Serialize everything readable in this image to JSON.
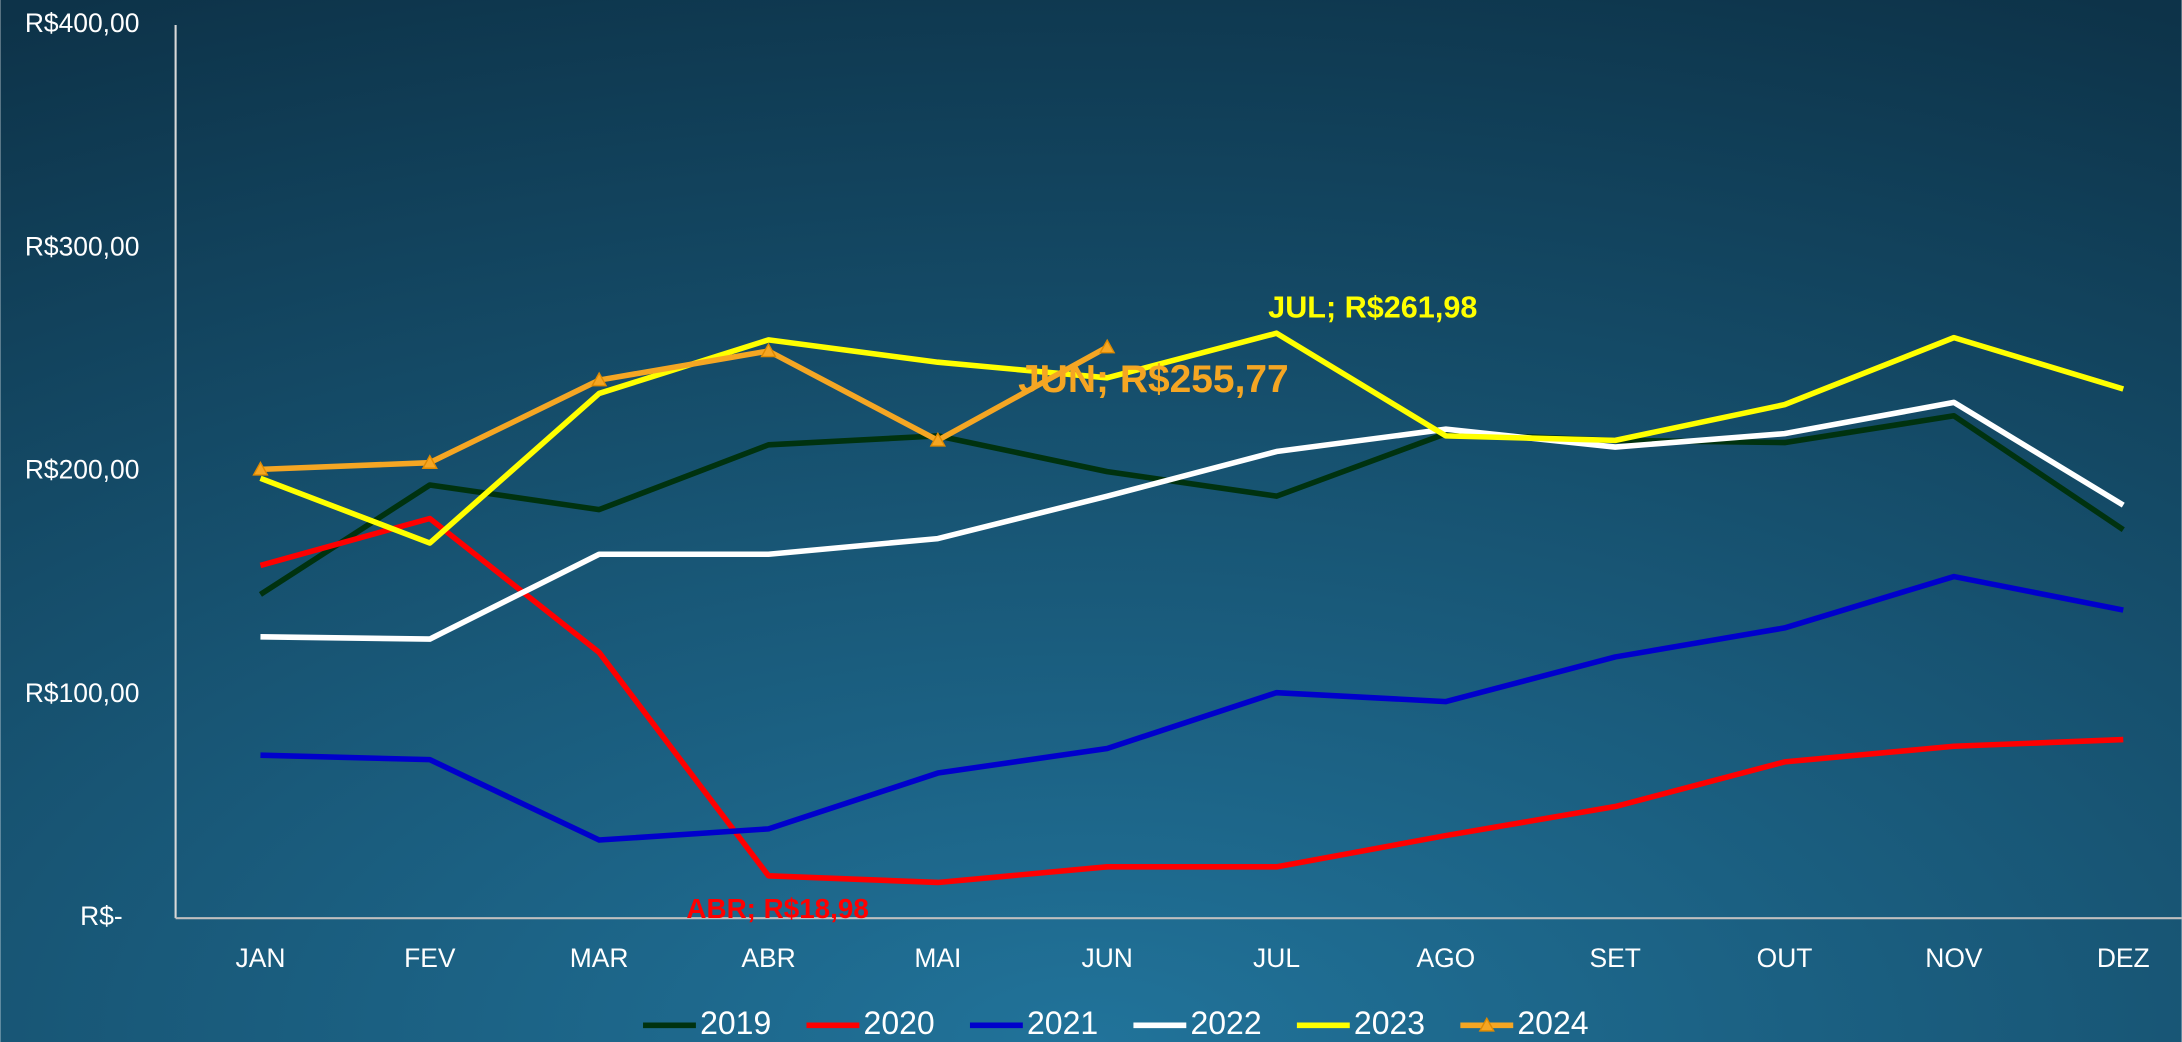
{
  "chart_data": {
    "type": "line",
    "categories": [
      "JAN",
      "FEV",
      "MAR",
      "ABR",
      "MAI",
      "JUN",
      "JUL",
      "AGO",
      "SET",
      "OUT",
      "NOV",
      "DEZ"
    ],
    "ylim": [
      0,
      400
    ],
    "yticks": [
      {
        "value": 0,
        "label": "R$-"
      },
      {
        "value": 100,
        "label": "R$100,00"
      },
      {
        "value": 200,
        "label": "R$200,00"
      },
      {
        "value": 300,
        "label": "R$300,00"
      },
      {
        "value": 400,
        "label": "R$400,00"
      }
    ],
    "grid": false,
    "legend": "bottom",
    "series": [
      {
        "name": "2019",
        "color": "#00320f",
        "values": [
          145,
          194,
          183,
          212,
          216,
          200,
          189,
          217,
          214,
          213,
          225,
          174
        ]
      },
      {
        "name": "2020",
        "color": "#ff0000",
        "values": [
          158,
          179,
          119,
          18.98,
          16,
          23,
          23,
          37,
          50,
          70,
          77,
          80
        ]
      },
      {
        "name": "2021",
        "color": "#0000cc",
        "values": [
          73,
          71,
          35,
          40,
          65,
          76,
          101,
          97,
          117,
          130,
          153,
          138
        ]
      },
      {
        "name": "2022",
        "color": "#ffffff",
        "values": [
          126,
          125,
          163,
          163,
          170,
          189,
          209,
          219,
          211,
          217,
          231,
          185
        ]
      },
      {
        "name": "2023",
        "color": "#ffff00",
        "values": [
          197,
          168,
          235,
          259,
          249,
          242,
          261.98,
          216,
          214,
          230,
          260,
          237
        ]
      },
      {
        "name": "2024",
        "color": "#f5a623",
        "marker": "triangle",
        "values": [
          201,
          204,
          241,
          254,
          214,
          255.77,
          null,
          null,
          null,
          null,
          null,
          null
        ]
      }
    ],
    "annotations": [
      "JUL;  R$261,98",
      "JUN;  R$255,77",
      "ABR;  R$18,98"
    ]
  }
}
